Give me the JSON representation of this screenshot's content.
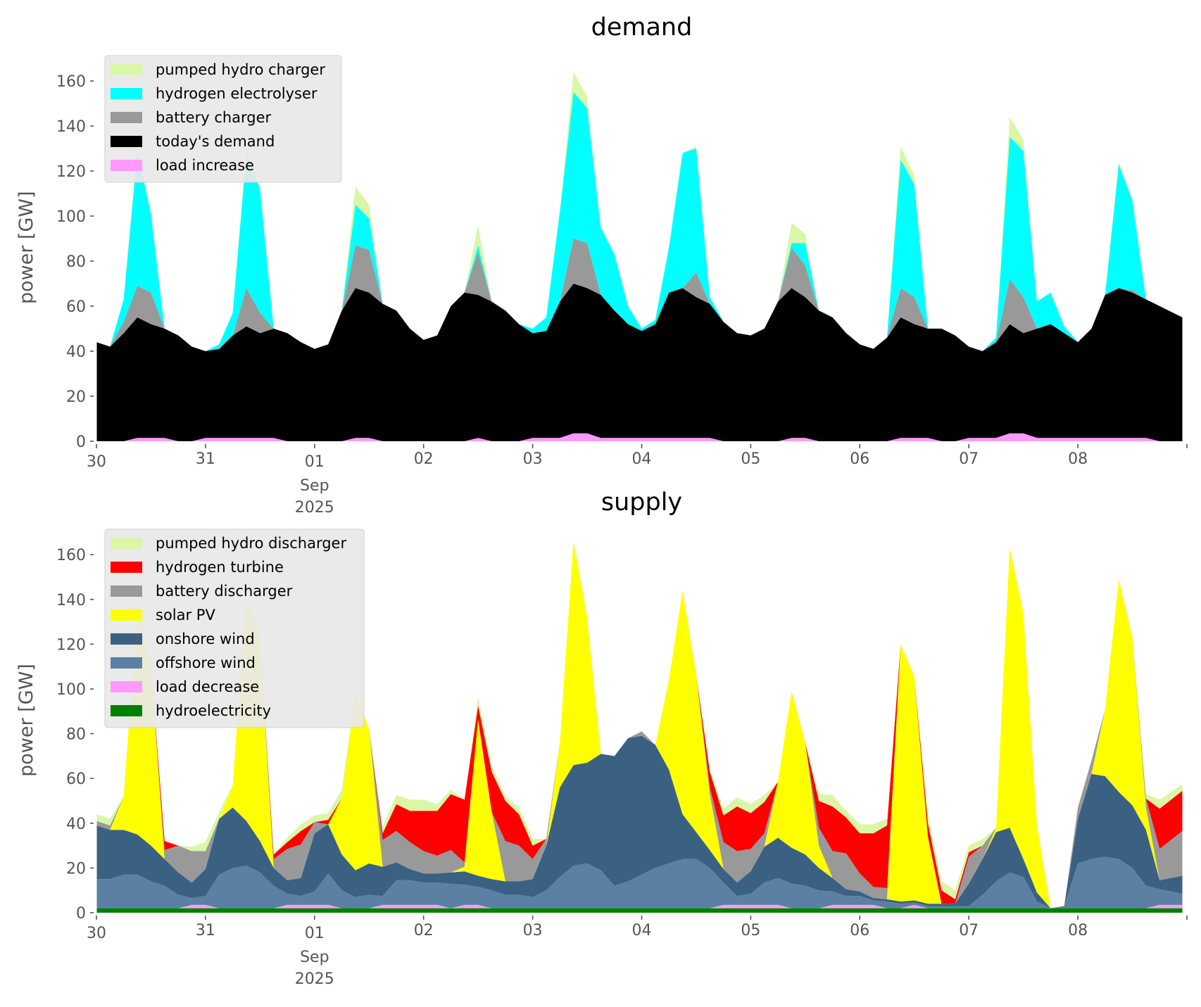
{
  "chart_data": [
    {
      "type": "area",
      "stacked": true,
      "title": "demand",
      "ylabel": "power [GW]",
      "xlabel": "",
      "ylim": [
        0,
        172
      ],
      "yticks": [
        0,
        20,
        40,
        60,
        80,
        100,
        120,
        140,
        160
      ],
      "x_start": "2025-08-30T00:00",
      "x_step_hours": 3,
      "x_end": "2025-09-09T00:00",
      "xticks": [
        "30",
        "31",
        "01",
        "02",
        "03",
        "04",
        "05",
        "06",
        "07",
        "08"
      ],
      "xtick_sub": {
        "month": "Sep",
        "year": "2025",
        "under": "01"
      },
      "grid": false,
      "legend_position": "upper-left",
      "series": [
        {
          "name": "today's demand",
          "color": "#000000",
          "values": [
            44,
            42,
            48,
            55,
            52,
            50,
            47,
            42,
            40,
            41,
            47,
            51,
            48,
            50,
            48,
            44,
            41,
            43,
            58,
            68,
            66,
            61,
            58,
            50,
            45,
            47,
            60,
            66,
            65,
            62,
            58,
            52,
            48,
            49,
            62,
            70,
            68,
            65,
            58,
            52,
            49,
            52,
            66,
            68,
            64,
            61,
            53,
            48,
            47,
            50,
            62,
            68,
            64,
            58,
            55,
            48,
            43,
            41,
            46,
            55,
            52,
            50,
            50,
            47,
            42,
            40,
            44,
            52,
            48,
            50,
            52,
            48,
            44,
            50,
            65,
            68,
            66,
            63,
            60,
            55
          ]
        },
        {
          "name": "battery charger",
          "color": "#999999",
          "values": [
            0,
            0,
            5,
            14,
            14,
            0,
            0,
            0,
            0,
            0,
            0,
            17,
            9,
            0,
            0,
            0,
            0,
            0,
            0,
            19,
            19,
            0,
            0,
            0,
            0,
            0,
            0,
            0,
            19,
            0,
            0,
            0,
            0,
            0,
            0,
            20,
            20,
            0,
            0,
            0,
            0,
            0,
            0,
            0,
            11,
            0,
            0,
            0,
            0,
            0,
            0,
            18,
            14,
            0,
            0,
            0,
            0,
            0,
            0,
            13,
            12,
            0,
            0,
            0,
            0,
            0,
            0,
            20,
            16,
            0,
            0,
            0,
            0,
            0,
            0,
            0,
            1,
            0,
            0,
            0
          ]
        },
        {
          "name": "hydrogen electrolyser",
          "color": "#00ffff",
          "values": [
            0,
            0,
            10,
            60,
            35,
            0,
            0,
            0,
            0,
            2,
            10,
            60,
            55,
            0,
            0,
            0,
            0,
            0,
            0,
            18,
            14,
            0,
            0,
            0,
            0,
            0,
            0,
            0,
            3,
            0,
            0,
            0,
            2,
            6,
            40,
            65,
            60,
            30,
            25,
            8,
            1,
            2,
            20,
            60,
            55,
            3,
            0,
            0,
            0,
            0,
            0,
            2,
            10,
            0,
            0,
            0,
            0,
            0,
            0,
            57,
            50,
            0,
            0,
            0,
            0,
            0,
            2,
            63,
            65,
            12,
            14,
            3,
            0,
            0,
            0,
            55,
            40,
            0,
            0,
            0
          ]
        },
        {
          "name": "pumped hydro charger",
          "color": "#d9f7a6",
          "values": [
            0,
            0,
            0,
            1,
            1,
            0,
            0,
            0,
            0,
            0,
            0,
            1,
            1,
            0,
            0,
            0,
            0,
            0,
            0,
            8,
            6,
            0,
            0,
            0,
            0,
            0,
            0,
            0,
            9,
            0,
            0,
            0,
            0,
            0,
            0,
            9,
            5,
            0,
            0,
            0,
            0,
            0,
            0,
            0,
            1,
            0,
            0,
            0,
            0,
            0,
            0,
            9,
            4,
            0,
            0,
            0,
            0,
            0,
            0,
            6,
            4,
            0,
            0,
            0,
            0,
            0,
            0,
            9,
            5,
            0,
            0,
            0,
            0,
            0,
            0,
            1,
            0,
            0,
            0,
            0
          ]
        }
      ],
      "overlay": {
        "name": "load increase",
        "color": "#ff99ff",
        "values": [
          0,
          0,
          0,
          1.5,
          1.5,
          1.5,
          0,
          0,
          1.5,
          1.5,
          1.5,
          1.5,
          1.5,
          1.5,
          0,
          0,
          0,
          0,
          0,
          1.5,
          1.5,
          0,
          0,
          0,
          0,
          0,
          0,
          0,
          1.5,
          0,
          0,
          0,
          1.5,
          1.5,
          1.5,
          3.5,
          3.5,
          1.5,
          1.5,
          1.5,
          1.5,
          1.5,
          1.5,
          1.5,
          1.5,
          1.5,
          0,
          0,
          0,
          0,
          0,
          1.5,
          1.5,
          0,
          0,
          0,
          0,
          0,
          0,
          1.5,
          1.5,
          1.5,
          0,
          0,
          1.5,
          1.5,
          1.5,
          3.5,
          3.5,
          1.5,
          1.5,
          1.5,
          1.5,
          1.5,
          1.5,
          1.5,
          1.5,
          1.5,
          0,
          0
        ]
      },
      "legend": [
        "pumped hydro charger",
        "hydrogen electrolyser",
        "battery charger",
        "today's demand",
        "load increase"
      ]
    },
    {
      "type": "area",
      "stacked": true,
      "title": "supply",
      "ylabel": "power [GW]",
      "xlabel": "",
      "ylim": [
        0,
        172
      ],
      "yticks": [
        0,
        20,
        40,
        60,
        80,
        100,
        120,
        140,
        160
      ],
      "x_start": "2025-08-30T00:00",
      "x_step_hours": 3,
      "x_end": "2025-09-09T00:00",
      "xticks": [
        "30",
        "31",
        "01",
        "02",
        "03",
        "04",
        "05",
        "06",
        "07",
        "08"
      ],
      "xtick_sub": {
        "month": "Sep",
        "year": "2025",
        "under": "01"
      },
      "grid": false,
      "legend_position": "upper-left",
      "series": [
        {
          "name": "hydroelectricity",
          "color": "#008000",
          "values": [
            2,
            2,
            2,
            2,
            2,
            2,
            2,
            2,
            2,
            2,
            2,
            2,
            2,
            2,
            2,
            2,
            2,
            2,
            2,
            2,
            2,
            2,
            2,
            2,
            2,
            2,
            2,
            2,
            2,
            2,
            2,
            2,
            2,
            2,
            2,
            2,
            2,
            2,
            2,
            2,
            2,
            2,
            2,
            2,
            2,
            2,
            2,
            2,
            2,
            2,
            2,
            2,
            2,
            2,
            2,
            2,
            2,
            2,
            2,
            2,
            2,
            2,
            2,
            2,
            2,
            2,
            2,
            2,
            2,
            2,
            2,
            2,
            2,
            2,
            2,
            2,
            2,
            2,
            2,
            2
          ]
        },
        {
          "name": "load decrease",
          "color": "#ff99ff",
          "values": [
            0,
            0,
            0,
            0,
            0,
            0,
            0,
            1.5,
            1.5,
            0,
            0,
            0,
            0,
            0,
            1.5,
            1.5,
            1.5,
            1.5,
            0,
            0,
            0,
            1.5,
            1.5,
            1.5,
            1.5,
            1.5,
            0,
            1.5,
            1.5,
            0,
            0,
            0,
            0,
            0,
            0,
            0,
            0,
            0,
            0,
            0,
            0,
            0,
            0,
            0,
            0,
            0,
            1.5,
            1.5,
            1.5,
            1.5,
            1.5,
            0,
            0,
            0,
            1.5,
            1.5,
            1.5,
            1.5,
            0,
            0,
            1.5,
            0,
            0,
            0,
            0,
            0,
            0,
            0,
            0,
            0,
            0,
            0,
            0,
            0,
            0,
            0,
            0,
            0,
            1.5,
            1.5
          ]
        },
        {
          "name": "offshore wind",
          "color": "#5b80a3",
          "values": [
            13,
            13,
            15,
            15,
            12,
            10,
            6,
            3,
            4,
            15,
            18,
            19,
            16,
            10,
            5,
            4,
            6,
            14,
            8,
            5,
            6,
            4,
            11,
            11,
            10,
            10,
            11,
            9,
            8,
            8,
            6,
            6,
            5,
            8,
            14,
            19,
            20,
            17,
            10,
            12,
            15,
            18,
            20,
            22,
            22,
            18,
            10,
            4,
            5,
            10,
            12,
            11,
            10,
            8,
            6,
            4,
            4,
            2,
            3,
            2,
            1,
            1,
            1,
            1,
            1,
            6,
            12,
            16,
            14,
            3,
            0,
            1,
            20,
            22,
            23,
            22,
            18,
            10,
            7,
            5
          ]
        },
        {
          "name": "onshore wind",
          "color": "#3b6182",
          "values": [
            24,
            22,
            20,
            18,
            16,
            12,
            10,
            7,
            12,
            25,
            27,
            20,
            14,
            8,
            6,
            8,
            26,
            22,
            16,
            12,
            14,
            13,
            8,
            5,
            4,
            4,
            5,
            6,
            5,
            5,
            6,
            6,
            8,
            20,
            40,
            45,
            45,
            52,
            58,
            64,
            62,
            55,
            42,
            20,
            12,
            8,
            6,
            6,
            10,
            16,
            18,
            16,
            14,
            10,
            6,
            3,
            2,
            1,
            1,
            1,
            1,
            1,
            1,
            1,
            10,
            16,
            22,
            20,
            8,
            4,
            0,
            0,
            20,
            38,
            36,
            30,
            28,
            25,
            4,
            8
          ]
        },
        {
          "name": "solar PV",
          "color": "#ffff00",
          "values": [
            0,
            0,
            15,
            100,
            80,
            0,
            0,
            0,
            0,
            0,
            10,
            100,
            90,
            0,
            0,
            0,
            0,
            0,
            25,
            80,
            60,
            0,
            0,
            0,
            0,
            0,
            0,
            2,
            70,
            30,
            0,
            0,
            0,
            0,
            20,
            100,
            65,
            0,
            0,
            0,
            0,
            0,
            40,
            100,
            70,
            25,
            0,
            0,
            0,
            0,
            25,
            70,
            50,
            10,
            0,
            0,
            0,
            0,
            0,
            115,
            100,
            30,
            0,
            0,
            0,
            0,
            2,
            125,
            110,
            30,
            0,
            0,
            0,
            0,
            30,
            95,
            75,
            10,
            0,
            0
          ]
        },
        {
          "name": "battery discharger",
          "color": "#999999",
          "values": [
            2,
            2,
            0,
            0,
            0,
            4,
            12,
            14,
            8,
            0,
            0,
            0,
            0,
            4,
            14,
            15,
            5,
            0,
            0,
            0,
            0,
            12,
            14,
            12,
            10,
            8,
            10,
            2,
            0,
            0,
            18,
            16,
            9,
            3,
            0,
            0,
            0,
            0,
            0,
            0,
            2,
            0,
            0,
            0,
            0,
            3,
            12,
            14,
            10,
            6,
            0,
            0,
            0,
            8,
            12,
            16,
            8,
            5,
            5,
            0,
            0,
            0,
            0,
            0,
            12,
            6,
            0,
            0,
            0,
            0,
            0,
            0,
            5,
            6,
            0,
            0,
            0,
            4,
            14,
            20
          ]
        },
        {
          "name": "hydrogen turbine",
          "color": "#ff0000",
          "values": [
            0,
            0,
            0,
            0,
            0,
            4,
            0,
            0,
            0,
            0,
            0,
            0,
            0,
            2,
            3,
            6,
            0,
            2,
            0,
            0,
            0,
            3,
            12,
            14,
            18,
            20,
            25,
            28,
            6,
            18,
            18,
            14,
            6,
            0,
            0,
            0,
            0,
            0,
            0,
            0,
            0,
            0,
            0,
            0,
            0,
            7,
            12,
            20,
            16,
            14,
            0,
            0,
            0,
            12,
            20,
            16,
            18,
            24,
            28,
            0,
            0,
            6,
            6,
            2,
            2,
            0,
            0,
            0,
            0,
            0,
            0,
            0,
            0,
            0,
            0,
            0,
            0,
            0,
            18,
            18
          ]
        },
        {
          "name": "pumped hydro discharger",
          "color": "#d9f7a6",
          "values": [
            3,
            3,
            0,
            0,
            0,
            0,
            0,
            2,
            4,
            3,
            0,
            0,
            0,
            0,
            2,
            3,
            3,
            3,
            4,
            0,
            0,
            3,
            4,
            5,
            5,
            3,
            2,
            0,
            4,
            3,
            2,
            3,
            3,
            0,
            0,
            0,
            0,
            0,
            0,
            0,
            0,
            0,
            0,
            0,
            0,
            1,
            3,
            4,
            4,
            3,
            0,
            0,
            0,
            3,
            5,
            3,
            4,
            4,
            3,
            0,
            0,
            4,
            4,
            4,
            3,
            3,
            0,
            0,
            0,
            0,
            0,
            0,
            0,
            0,
            0,
            0,
            0,
            2,
            4,
            3
          ]
        }
      ],
      "legend": [
        "pumped hydro discharger",
        "hydrogen turbine",
        "battery discharger",
        "solar PV",
        "onshore wind",
        "offshore wind",
        "load decrease",
        "hydroelectricity"
      ]
    }
  ]
}
